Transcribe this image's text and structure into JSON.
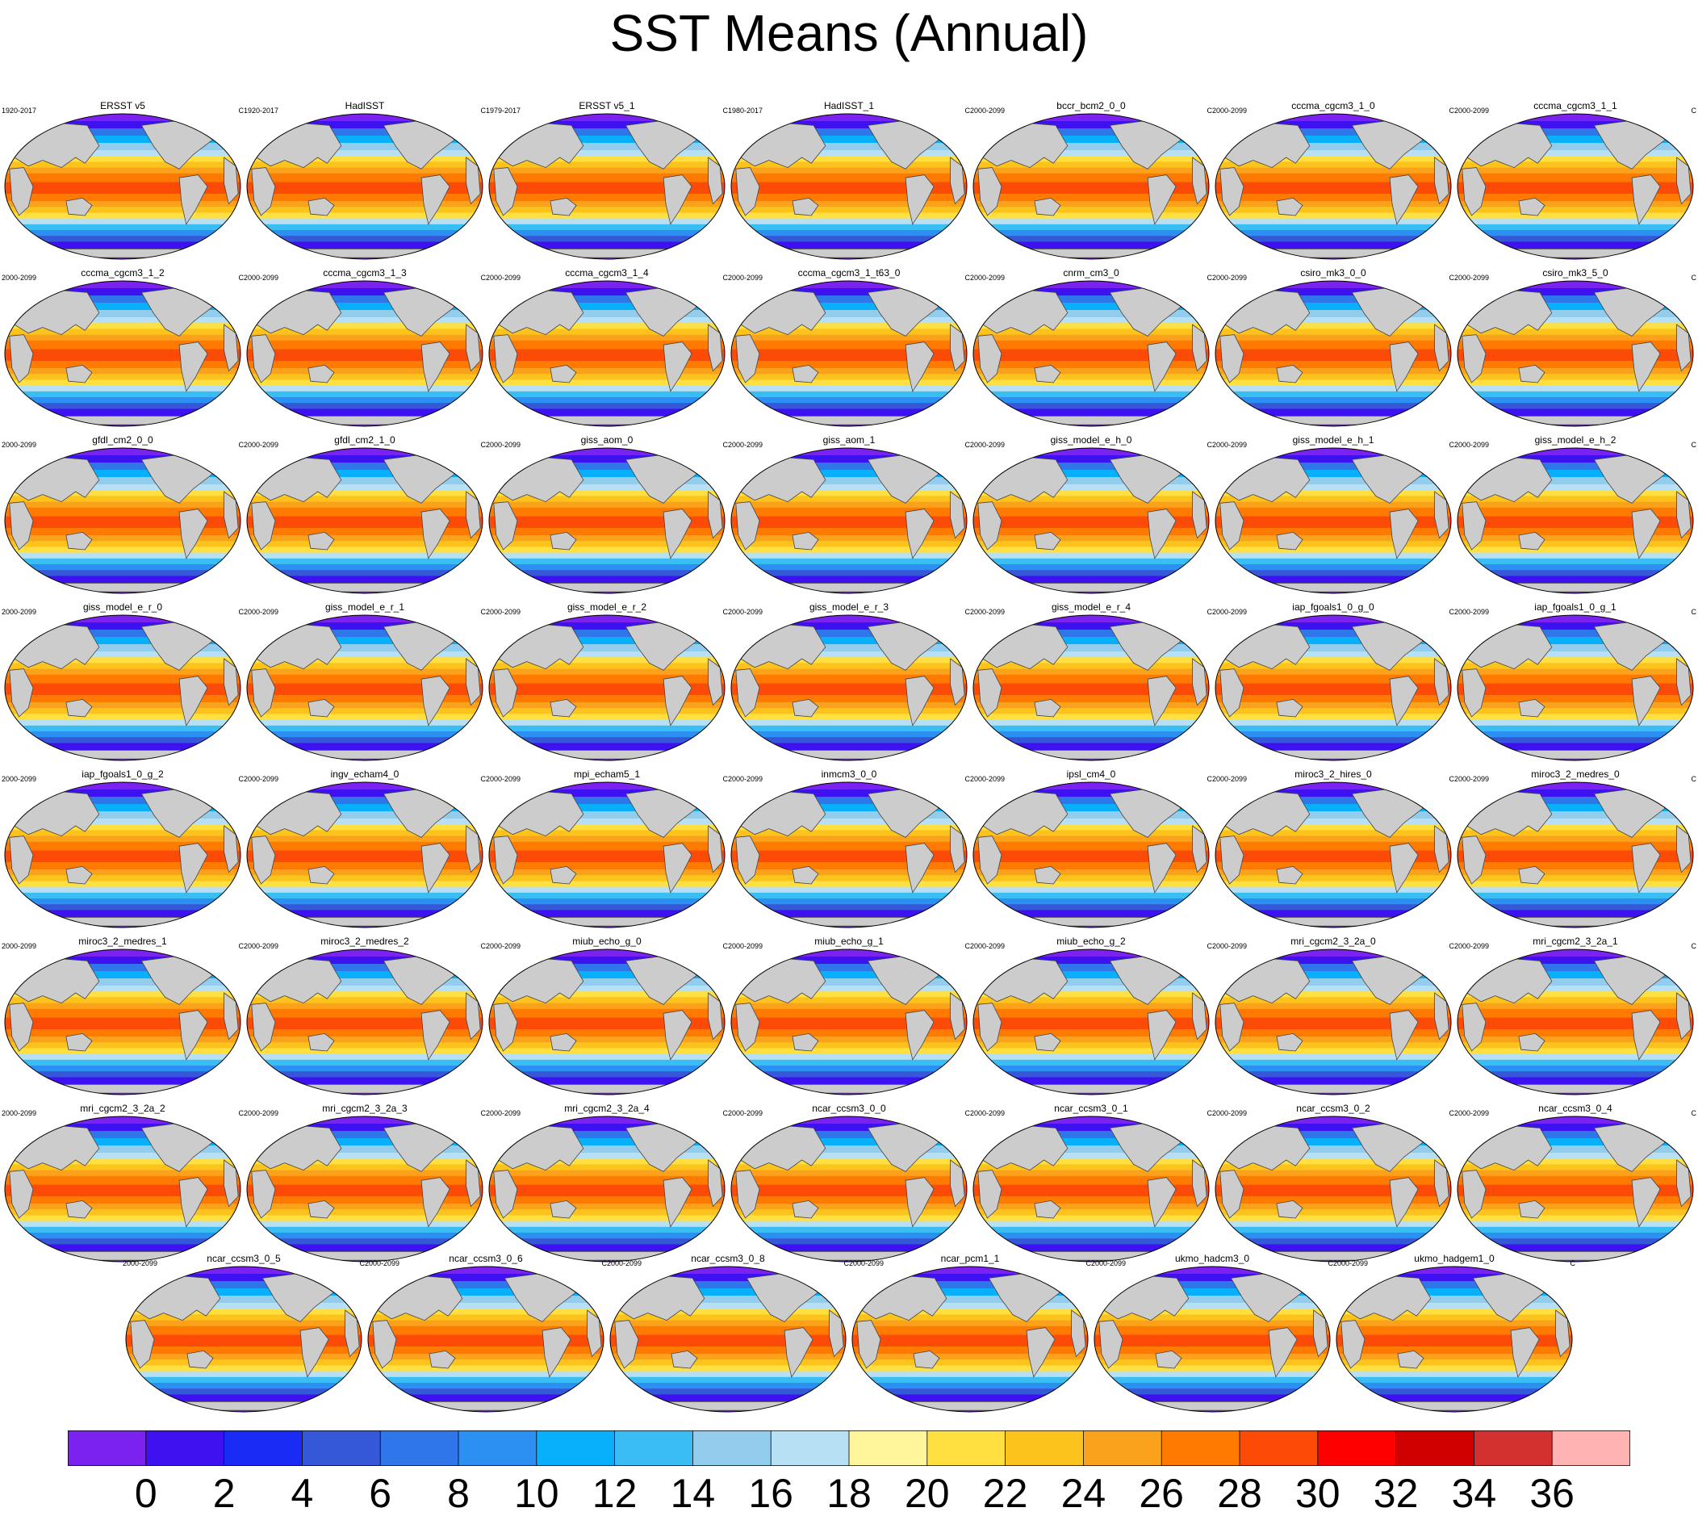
{
  "title": "SST Means (Annual)",
  "units": "C",
  "chart_data": {
    "type": "heatmap",
    "title": "SST Means (Annual)",
    "projection": "global map (Robinson-like)",
    "colorbar": {
      "levels": [
        0,
        2,
        4,
        6,
        8,
        10,
        12,
        14,
        16,
        18,
        20,
        22,
        24,
        26,
        28,
        30,
        32,
        34,
        36
      ],
      "labels": [
        "0",
        "2",
        "4",
        "6",
        "8",
        "10",
        "12",
        "14",
        "16",
        "18",
        "20",
        "22",
        "24",
        "26",
        "28",
        "30",
        "32",
        "34",
        "36"
      ],
      "colors": [
        "#7b22f0",
        "#3e12f0",
        "#1a2bf5",
        "#3558d8",
        "#2f76ea",
        "#2c8ff2",
        "#08b0fb",
        "#39bdf2",
        "#92cdee",
        "#b8e0f4",
        "#fff59a",
        "#ffe040",
        "#fbc31c",
        "#fba21c",
        "#ff7a00",
        "#fc4a07",
        "#ff0000",
        "#d10000",
        "#d33030",
        "#ffb3b3"
      ],
      "placement": "bottom"
    },
    "panels": [
      {
        "name": "ERSST v5",
        "years": "1920-2017",
        "units": "C"
      },
      {
        "name": "HadISST",
        "years": "1920-2017",
        "units": "C"
      },
      {
        "name": "ERSST v5_1",
        "years": "1979-2017",
        "units": "C"
      },
      {
        "name": "HadISST_1",
        "years": "1980-2017",
        "units": "C"
      },
      {
        "name": "bccr_bcm2_0_0",
        "years": "2000-2099",
        "units": "C"
      },
      {
        "name": "cccma_cgcm3_1_0",
        "years": "2000-2099",
        "units": "C"
      },
      {
        "name": "cccma_cgcm3_1_1",
        "years": "2000-2099",
        "units": "C"
      },
      {
        "name": "cccma_cgcm3_1_2",
        "years": "2000-2099",
        "units": "C"
      },
      {
        "name": "cccma_cgcm3_1_3",
        "years": "2000-2099",
        "units": "C"
      },
      {
        "name": "cccma_cgcm3_1_4",
        "years": "2000-2099",
        "units": "C"
      },
      {
        "name": "cccma_cgcm3_1_t63_0",
        "years": "2000-2099",
        "units": "C"
      },
      {
        "name": "cnrm_cm3_0",
        "years": "2000-2099",
        "units": "C"
      },
      {
        "name": "csiro_mk3_0_0",
        "years": "2000-2099",
        "units": "C"
      },
      {
        "name": "csiro_mk3_5_0",
        "years": "2000-2099",
        "units": "C"
      },
      {
        "name": "gfdl_cm2_0_0",
        "years": "2000-2099",
        "units": "C"
      },
      {
        "name": "gfdl_cm2_1_0",
        "years": "2000-2099",
        "units": "C"
      },
      {
        "name": "giss_aom_0",
        "years": "2000-2099",
        "units": "C"
      },
      {
        "name": "giss_aom_1",
        "years": "2000-2099",
        "units": "C"
      },
      {
        "name": "giss_model_e_h_0",
        "years": "2000-2099",
        "units": "C"
      },
      {
        "name": "giss_model_e_h_1",
        "years": "2000-2099",
        "units": "C"
      },
      {
        "name": "giss_model_e_h_2",
        "years": "2000-2099",
        "units": "C"
      },
      {
        "name": "giss_model_e_r_0",
        "years": "2000-2099",
        "units": "C"
      },
      {
        "name": "giss_model_e_r_1",
        "years": "2000-2099",
        "units": "C"
      },
      {
        "name": "giss_model_e_r_2",
        "years": "2000-2099",
        "units": "C"
      },
      {
        "name": "giss_model_e_r_3",
        "years": "2000-2099",
        "units": "C"
      },
      {
        "name": "giss_model_e_r_4",
        "years": "2000-2099",
        "units": "C"
      },
      {
        "name": "iap_fgoals1_0_g_0",
        "years": "2000-2099",
        "units": "C"
      },
      {
        "name": "iap_fgoals1_0_g_1",
        "years": "2000-2099",
        "units": "C"
      },
      {
        "name": "iap_fgoals1_0_g_2",
        "years": "2000-2099",
        "units": "C"
      },
      {
        "name": "ingv_echam4_0",
        "years": "2000-2099",
        "units": "C"
      },
      {
        "name": "mpi_echam5_1",
        "years": "2000-2099",
        "units": "C"
      },
      {
        "name": "inmcm3_0_0",
        "years": "2000-2099",
        "units": "C"
      },
      {
        "name": "ipsl_cm4_0",
        "years": "2000-2099",
        "units": "C"
      },
      {
        "name": "miroc3_2_hires_0",
        "years": "2000-2099",
        "units": "C"
      },
      {
        "name": "miroc3_2_medres_0",
        "years": "2000-2099",
        "units": "C"
      },
      {
        "name": "miroc3_2_medres_1",
        "years": "2000-2099",
        "units": "C"
      },
      {
        "name": "miroc3_2_medres_2",
        "years": "2000-2099",
        "units": "C"
      },
      {
        "name": "miub_echo_g_0",
        "years": "2000-2099",
        "units": "C"
      },
      {
        "name": "miub_echo_g_1",
        "years": "2000-2099",
        "units": "C"
      },
      {
        "name": "miub_echo_g_2",
        "years": "2000-2099",
        "units": "C"
      },
      {
        "name": "mri_cgcm2_3_2a_0",
        "years": "2000-2099",
        "units": "C"
      },
      {
        "name": "mri_cgcm2_3_2a_1",
        "years": "2000-2099",
        "units": "C"
      },
      {
        "name": "mri_cgcm2_3_2a_2",
        "years": "2000-2099",
        "units": "C"
      },
      {
        "name": "mri_cgcm2_3_2a_3",
        "years": "2000-2099",
        "units": "C"
      },
      {
        "name": "mri_cgcm2_3_2a_4",
        "years": "2000-2099",
        "units": "C"
      },
      {
        "name": "ncar_ccsm3_0_0",
        "years": "2000-2099",
        "units": "C"
      },
      {
        "name": "ncar_ccsm3_0_1",
        "years": "2000-2099",
        "units": "C"
      },
      {
        "name": "ncar_ccsm3_0_2",
        "years": "2000-2099",
        "units": "C"
      },
      {
        "name": "ncar_ccsm3_0_4",
        "years": "2000-2099",
        "units": "C"
      },
      {
        "name": "ncar_ccsm3_0_5",
        "years": "2000-2099",
        "units": "C"
      },
      {
        "name": "ncar_ccsm3_0_6",
        "years": "2000-2099",
        "units": "C"
      },
      {
        "name": "ncar_ccsm3_0_8",
        "years": "2000-2099",
        "units": "C"
      },
      {
        "name": "ncar_pcm1_1",
        "years": "2000-2099",
        "units": "C"
      },
      {
        "name": "ukmo_hadcm3_0",
        "years": "2000-2099",
        "units": "C"
      },
      {
        "name": "ukmo_hadgem1_0",
        "years": "2000-2099",
        "units": "C"
      }
    ]
  }
}
